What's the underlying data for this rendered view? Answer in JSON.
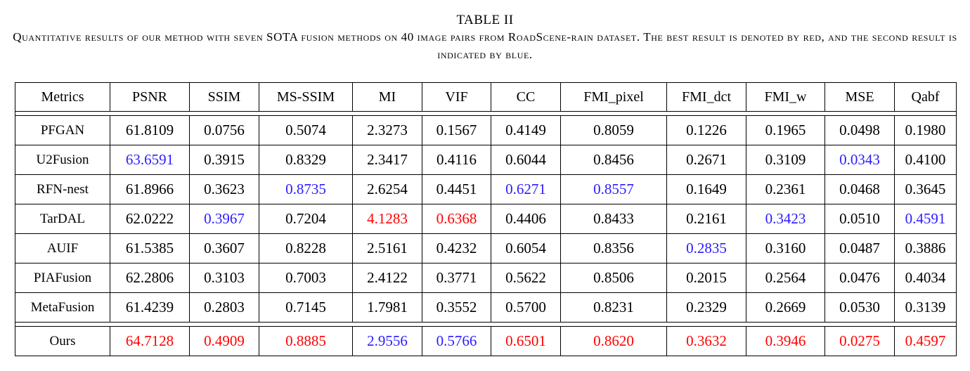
{
  "caption": {
    "label": "TABLE II",
    "text": "Quantitative results of our method with seven SOTA fusion methods on 40 image pairs from RoadScene-rain dataset. The best result is denoted by red, and the second result is indicated by blue."
  },
  "colors": {
    "best": "#ff0000",
    "second": "#2b1bff"
  },
  "table": {
    "headers": [
      "Metrics",
      "PSNR",
      "SSIM",
      "MS-SSIM",
      "MI",
      "VIF",
      "CC",
      "FMI_pixel",
      "FMI_dct",
      "FMI_w",
      "MSE",
      "Qabf"
    ],
    "rows": [
      {
        "method": "PFGAN",
        "values": [
          "61.8109",
          "0.0756",
          "0.5074",
          "2.3273",
          "0.1567",
          "0.4149",
          "0.8059",
          "0.1226",
          "0.1965",
          "0.0498",
          "0.1980"
        ],
        "rank": [
          "",
          "",
          "",
          "",
          "",
          "",
          "",
          "",
          "",
          "",
          ""
        ]
      },
      {
        "method": "U2Fusion",
        "values": [
          "63.6591",
          "0.3915",
          "0.8329",
          "2.3417",
          "0.4116",
          "0.6044",
          "0.8456",
          "0.2671",
          "0.3109",
          "0.0343",
          "0.4100"
        ],
        "rank": [
          "second",
          "",
          "",
          "",
          "",
          "",
          "",
          "",
          "",
          "second",
          ""
        ]
      },
      {
        "method": "RFN-nest",
        "values": [
          "61.8966",
          "0.3623",
          "0.8735",
          "2.6254",
          "0.4451",
          "0.6271",
          "0.8557",
          "0.1649",
          "0.2361",
          "0.0468",
          "0.3645"
        ],
        "rank": [
          "",
          "",
          "second",
          "",
          "",
          "second",
          "second",
          "",
          "",
          "",
          ""
        ]
      },
      {
        "method": "TarDAL",
        "values": [
          "62.0222",
          "0.3967",
          "0.7204",
          "4.1283",
          "0.6368",
          "0.4406",
          "0.8433",
          "0.2161",
          "0.3423",
          "0.0510",
          "0.4591"
        ],
        "rank": [
          "",
          "second",
          "",
          "best",
          "best",
          "",
          "",
          "",
          "second",
          "",
          "second"
        ]
      },
      {
        "method": "AUIF",
        "values": [
          "61.5385",
          "0.3607",
          "0.8228",
          "2.5161",
          "0.4232",
          "0.6054",
          "0.8356",
          "0.2835",
          "0.3160",
          "0.0487",
          "0.3886"
        ],
        "rank": [
          "",
          "",
          "",
          "",
          "",
          "",
          "",
          "second",
          "",
          "",
          ""
        ]
      },
      {
        "method": "PIAFusion",
        "values": [
          "62.2806",
          "0.3103",
          "0.7003",
          "2.4122",
          "0.3771",
          "0.5622",
          "0.8506",
          "0.2015",
          "0.2564",
          "0.0476",
          "0.4034"
        ],
        "rank": [
          "",
          "",
          "",
          "",
          "",
          "",
          "",
          "",
          "",
          "",
          ""
        ]
      },
      {
        "method": "MetaFusion",
        "values": [
          "61.4239",
          "0.2803",
          "0.7145",
          "1.7981",
          "0.3552",
          "0.5700",
          "0.8231",
          "0.2329",
          "0.2669",
          "0.0530",
          "0.3139"
        ],
        "rank": [
          "",
          "",
          "",
          "",
          "",
          "",
          "",
          "",
          "",
          "",
          ""
        ]
      }
    ],
    "ours": {
      "method": "Ours",
      "values": [
        "64.7128",
        "0.4909",
        "0.8885",
        "2.9556",
        "0.5766",
        "0.6501",
        "0.8620",
        "0.3632",
        "0.3946",
        "0.0275",
        "0.4597"
      ],
      "rank": [
        "best",
        "best",
        "best",
        "second",
        "second",
        "best",
        "best",
        "best",
        "best",
        "best",
        "best"
      ]
    }
  }
}
